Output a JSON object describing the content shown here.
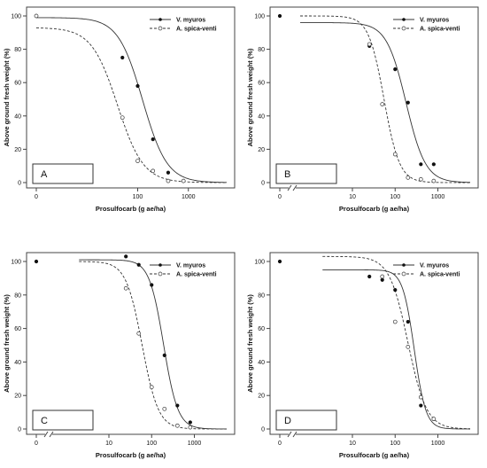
{
  "chart_data": [
    {
      "type": "line",
      "panel_label": "A",
      "xlabel": "Prosulfocarb (g ae/ha)",
      "ylabel": "Above ground fresh weight (%)",
      "x_scale": "log",
      "x_ticks": [
        "0",
        "100",
        "1000"
      ],
      "x_tick_values": [
        1,
        100,
        1000
      ],
      "y_ticks": [
        "0",
        "20",
        "40",
        "60",
        "80",
        "100"
      ],
      "ylim": [
        0,
        100
      ],
      "xlim": [
        1,
        5700
      ],
      "axis_break": false,
      "legend": "top-right",
      "series": [
        {
          "name": "V. myuros",
          "style": "solid",
          "marker": "filled",
          "points": [
            [
              1,
              100
            ],
            [
              50,
              75
            ],
            [
              100,
              58
            ],
            [
              200,
              26
            ],
            [
              400,
              6
            ],
            [
              800,
              1
            ]
          ],
          "curve": {
            "upper": 99,
            "lower": 0,
            "ed50": 125,
            "slope": 1.8,
            "xmin": 1,
            "xmax": 5700
          }
        },
        {
          "name": "A. spica-venti",
          "style": "dashed",
          "marker": "open",
          "points": [
            [
              1,
              100
            ],
            [
              50,
              39
            ],
            [
              100,
              13
            ],
            [
              200,
              7
            ],
            [
              400,
              1
            ],
            [
              800,
              1
            ]
          ],
          "curve": {
            "upper": 93,
            "lower": 0,
            "ed50": 40,
            "slope": 1.7,
            "xmin": 1,
            "xmax": 5700
          }
        }
      ]
    },
    {
      "type": "line",
      "panel_label": "B",
      "xlabel": "Prosulfocarb (g ae/ha)",
      "ylabel": "Above ground fresh weight (%)",
      "x_scale": "log",
      "x_ticks": [
        "0",
        "10",
        "100",
        "1000"
      ],
      "x_tick_values": [
        0.2,
        10,
        100,
        1000
      ],
      "y_ticks": [
        "0",
        "20",
        "40",
        "60",
        "80",
        "100"
      ],
      "ylim": [
        0,
        100
      ],
      "xlim": [
        0.2,
        5700
      ],
      "axis_break": true,
      "legend": "top-right",
      "series": [
        {
          "name": "V. myuros",
          "style": "solid",
          "marker": "filled",
          "points": [
            [
              0.2,
              100
            ],
            [
              25,
              82
            ],
            [
              100,
              68
            ],
            [
              200,
              48
            ],
            [
              400,
              11
            ],
            [
              800,
              11
            ]
          ],
          "curve": {
            "upper": 96,
            "lower": 0,
            "ed50": 180,
            "slope": 1.9,
            "xmin": 0.6,
            "xmax": 5700
          }
        },
        {
          "name": "A. spica-venti",
          "style": "dashed",
          "marker": "open",
          "points": [
            [
              25,
              83
            ],
            [
              50,
              47
            ],
            [
              100,
              17
            ],
            [
              200,
              3
            ],
            [
              400,
              2
            ],
            [
              800,
              1
            ]
          ],
          "curve": {
            "upper": 100,
            "lower": 0,
            "ed50": 55,
            "slope": 2.4,
            "xmin": 0.6,
            "xmax": 5700
          }
        }
      ]
    },
    {
      "type": "line",
      "panel_label": "C",
      "xlabel": "Prosulfocarb (g ae/ha)",
      "ylabel": "Above ground fresh weight (%)",
      "x_scale": "log",
      "x_ticks": [
        "0",
        "10",
        "100",
        "1000"
      ],
      "x_tick_values": [
        0.2,
        10,
        100,
        1000
      ],
      "y_ticks": [
        "0",
        "20",
        "40",
        "60",
        "80",
        "100"
      ],
      "ylim": [
        0,
        100
      ],
      "xlim": [
        0.2,
        5700
      ],
      "axis_break": true,
      "legend": "top-right",
      "series": [
        {
          "name": "V. myuros",
          "style": "solid",
          "marker": "filled",
          "points": [
            [
              0.2,
              100
            ],
            [
              25,
              103
            ],
            [
              50,
              98
            ],
            [
              100,
              86
            ],
            [
              200,
              44
            ],
            [
              400,
              14
            ],
            [
              800,
              4
            ]
          ],
          "curve": {
            "upper": 101,
            "lower": 0,
            "ed50": 190,
            "slope": 2.6,
            "xmin": 2,
            "xmax": 5700
          }
        },
        {
          "name": "A. spica-venti",
          "style": "dashed",
          "marker": "open",
          "points": [
            [
              25,
              84
            ],
            [
              50,
              57
            ],
            [
              100,
              25
            ],
            [
              200,
              12
            ],
            [
              400,
              2
            ],
            [
              800,
              1
            ]
          ],
          "curve": {
            "upper": 100,
            "lower": 0,
            "ed50": 60,
            "slope": 2.3,
            "xmin": 2,
            "xmax": 5700
          }
        }
      ]
    },
    {
      "type": "line",
      "panel_label": "D",
      "xlabel": "Prosulfocarb (g ae/ha)",
      "ylabel": "Above ground fresh weight (%)",
      "x_scale": "log",
      "x_ticks": [
        "0",
        "10",
        "100",
        "1000"
      ],
      "x_tick_values": [
        0.2,
        10,
        100,
        1000
      ],
      "y_ticks": [
        "0",
        "20",
        "40",
        "60",
        "80",
        "100"
      ],
      "ylim": [
        0,
        100
      ],
      "xlim": [
        0.2,
        5700
      ],
      "axis_break": true,
      "legend": "top-right",
      "series": [
        {
          "name": "V. myuros",
          "style": "solid",
          "marker": "filled",
          "points": [
            [
              0.2,
              100
            ],
            [
              25,
              91
            ],
            [
              50,
              89
            ],
            [
              100,
              83
            ],
            [
              200,
              64
            ],
            [
              400,
              14
            ],
            [
              800,
              6
            ]
          ],
          "curve": {
            "upper": 95,
            "lower": 0,
            "ed50": 280,
            "slope": 3.2,
            "xmin": 2,
            "xmax": 5700
          }
        },
        {
          "name": "A. spica-venti",
          "style": "dashed",
          "marker": "open",
          "points": [
            [
              50,
              91
            ],
            [
              100,
              64
            ],
            [
              200,
              49
            ],
            [
              400,
              19
            ],
            [
              800,
              6
            ]
          ],
          "curve": {
            "upper": 103,
            "lower": 0,
            "ed50": 200,
            "slope": 2.0,
            "xmin": 2,
            "xmax": 5700
          }
        }
      ]
    }
  ]
}
